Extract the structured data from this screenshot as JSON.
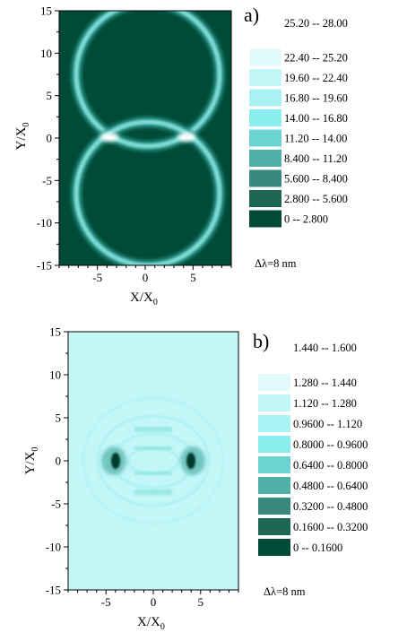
{
  "chart_data": [
    {
      "type": "heatmap",
      "panel_label": "a)",
      "xlabel": "X/X",
      "xlabel_sub": "0",
      "ylabel": "Y/X",
      "ylabel_sub": "0",
      "xlim": [
        -9,
        9
      ],
      "ylim": [
        -15,
        15
      ],
      "xticks": [
        -5,
        0,
        5
      ],
      "yticks": [
        -15,
        -10,
        -5,
        0,
        5,
        10,
        15
      ],
      "background_color": "#004a38",
      "note": "Δλ=8 nm",
      "legend": [
        {
          "label": "25.20  --  28.00",
          "color": "#ffffff"
        },
        {
          "label": "22.40  --  25.20",
          "color": "#e1fbfb"
        },
        {
          "label": "19.60  --  22.40",
          "color": "#c3f7f7"
        },
        {
          "label": "16.80  --  19.60",
          "color": "#a8f2f2"
        },
        {
          "label": "14.00  --  16.80",
          "color": "#8aeeee"
        },
        {
          "label": "11.20  --  14.00",
          "color": "#6cd4d0"
        },
        {
          "label": "8.400  --  11.20",
          "color": "#4fb0a8"
        },
        {
          "label": "5.600  --  8.400",
          "color": "#37887d"
        },
        {
          "label": "2.800  --  5.600",
          "color": "#1f6755"
        },
        {
          "label": "0  --  2.800",
          "color": "#004a38"
        }
      ]
    },
    {
      "type": "heatmap",
      "panel_label": "b)",
      "xlabel": "X/X",
      "xlabel_sub": "0",
      "ylabel": "Y/X",
      "ylabel_sub": "0",
      "xlim": [
        -9,
        9
      ],
      "ylim": [
        -15,
        15
      ],
      "xticks": [
        -5,
        0,
        5
      ],
      "yticks": [
        -15,
        -10,
        -5,
        0,
        5,
        10,
        15
      ],
      "background_color": "#c3f7f7",
      "note": "Δλ=8 nm",
      "legend": [
        {
          "label": "1.440  --  1.600",
          "color": "#ffffff"
        },
        {
          "label": "1.280  --  1.440",
          "color": "#e1fbfb"
        },
        {
          "label": "1.120  --  1.280",
          "color": "#c3f7f7"
        },
        {
          "label": "0.9600  --  1.120",
          "color": "#a8f2f2"
        },
        {
          "label": "0.8000  --  0.9600",
          "color": "#8aeeee"
        },
        {
          "label": "0.6400  --  0.8000",
          "color": "#6cd4d0"
        },
        {
          "label": "0.4800  --  0.6400",
          "color": "#4fb0a8"
        },
        {
          "label": "0.3200  --  0.4800",
          "color": "#37887d"
        },
        {
          "label": "0.1600  --  0.3200",
          "color": "#1f6755"
        },
        {
          "label": "0  --  0.1600",
          "color": "#004a38"
        }
      ]
    }
  ]
}
